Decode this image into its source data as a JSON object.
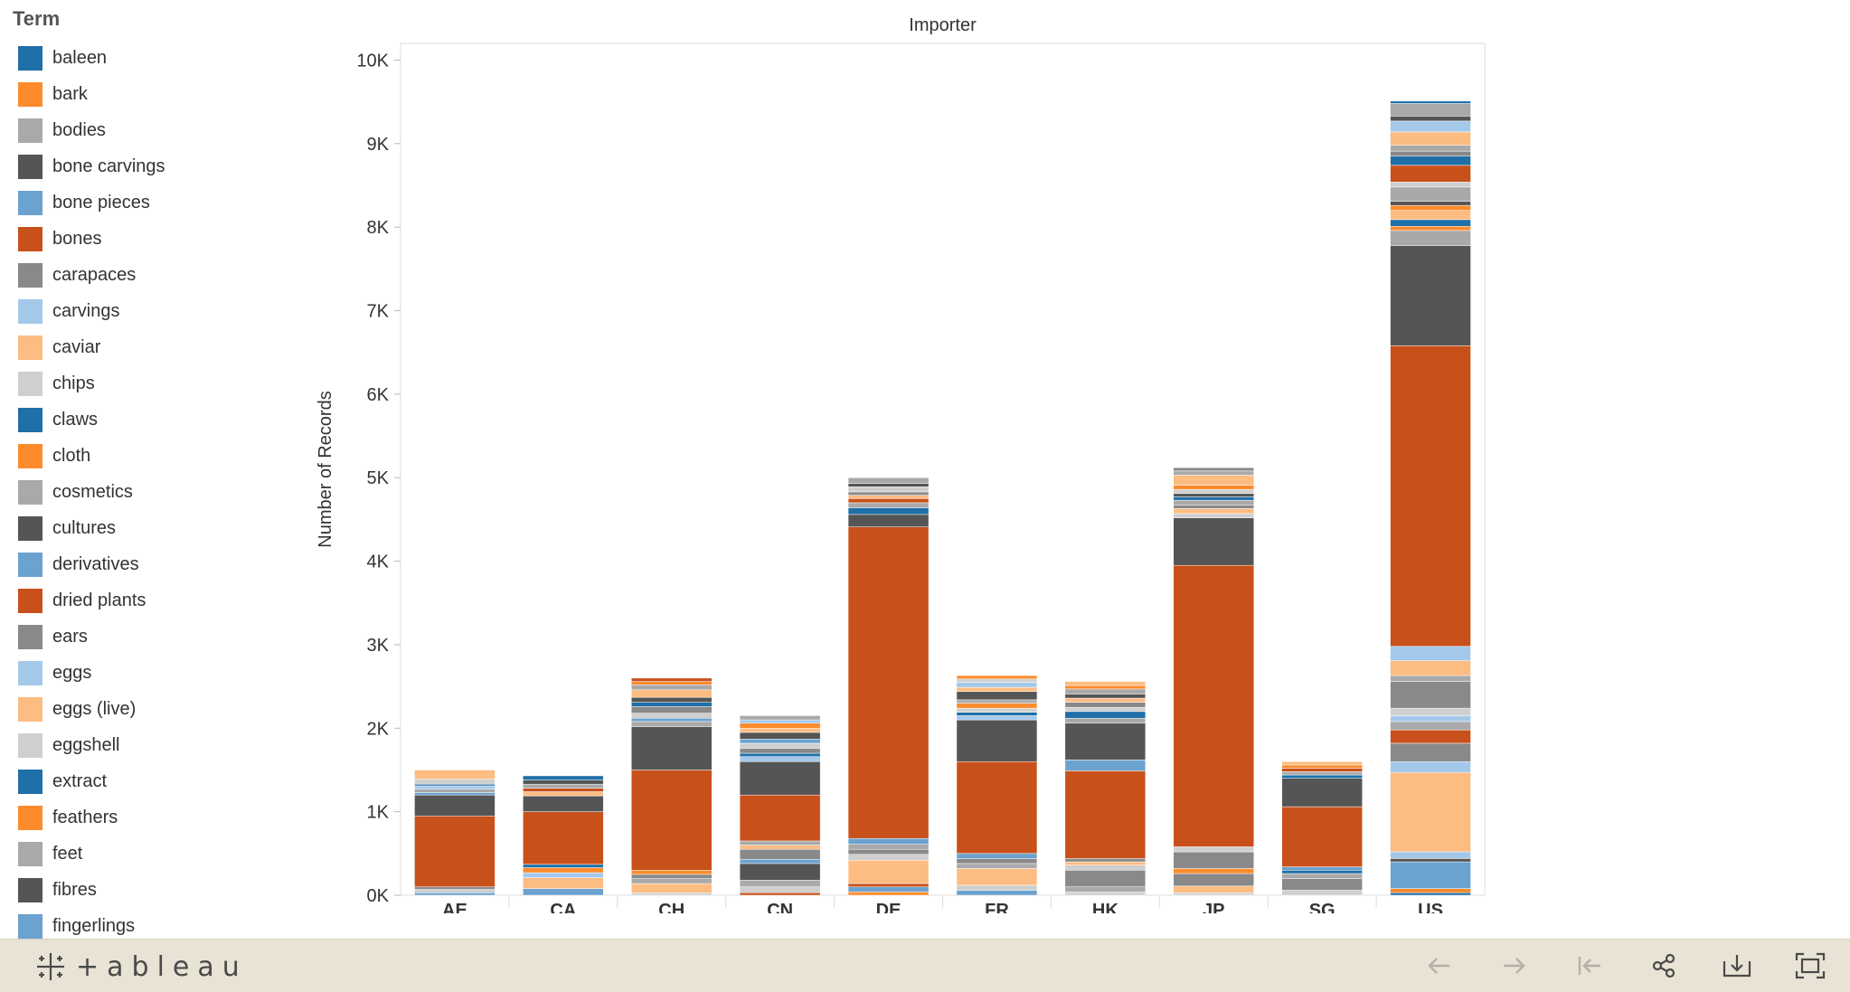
{
  "legend": {
    "title": "Term",
    "items": [
      {
        "label": "baleen",
        "color": "#1f6fa8"
      },
      {
        "label": "bark",
        "color": "#fd8b2c"
      },
      {
        "label": "bodies",
        "color": "#a9a9a9"
      },
      {
        "label": "bone carvings",
        "color": "#555555"
      },
      {
        "label": "bone pieces",
        "color": "#6ba2cf"
      },
      {
        "label": "bones",
        "color": "#c8501a"
      },
      {
        "label": "carapaces",
        "color": "#898989"
      },
      {
        "label": "carvings",
        "color": "#a4c8ea"
      },
      {
        "label": "caviar",
        "color": "#fcbc82"
      },
      {
        "label": "chips",
        "color": "#cfcfcf"
      },
      {
        "label": "claws",
        "color": "#1f6fa8"
      },
      {
        "label": "cloth",
        "color": "#fd8b2c"
      },
      {
        "label": "cosmetics",
        "color": "#a9a9a9"
      },
      {
        "label": "cultures",
        "color": "#555555"
      },
      {
        "label": "derivatives",
        "color": "#6ba2cf"
      },
      {
        "label": "dried plants",
        "color": "#c8501a"
      },
      {
        "label": "ears",
        "color": "#898989"
      },
      {
        "label": "eggs",
        "color": "#a4c8ea"
      },
      {
        "label": "eggs (live)",
        "color": "#fcbc82"
      },
      {
        "label": "eggshell",
        "color": "#cfcfcf"
      },
      {
        "label": "extract",
        "color": "#1f6fa8"
      },
      {
        "label": "feathers",
        "color": "#fd8b2c"
      },
      {
        "label": "feet",
        "color": "#a9a9a9"
      },
      {
        "label": "fibres",
        "color": "#555555"
      },
      {
        "label": "fingerlings",
        "color": "#6ba2cf"
      }
    ]
  },
  "footer": {
    "logo_text": "+ableau"
  },
  "chart_data": {
    "type": "bar",
    "stacked": true,
    "title": "Importer",
    "xlabel": "",
    "ylabel": "Number of Records",
    "ylim": [
      0,
      10200
    ],
    "yticks": [
      0,
      1000,
      2000,
      3000,
      4000,
      5000,
      6000,
      7000,
      8000,
      9000,
      10000
    ],
    "ytick_labels": [
      "0K",
      "1K",
      "2K",
      "3K",
      "4K",
      "5K",
      "6K",
      "7K",
      "8K",
      "9K",
      "10K"
    ],
    "grid": false,
    "legend_position": "left",
    "categories": [
      "AE",
      "CA",
      "CH",
      "CN",
      "DE",
      "FR",
      "HK",
      "JP",
      "SG",
      "US"
    ],
    "bars": [
      {
        "category": "AE",
        "segments": [
          {
            "value": 30,
            "color": "#6ba2cf"
          },
          {
            "value": 40,
            "color": "#cfcfcf"
          },
          {
            "value": 30,
            "color": "#898989"
          },
          {
            "value": 850,
            "color": "#c8501a"
          },
          {
            "value": 250,
            "color": "#555555"
          },
          {
            "value": 30,
            "color": "#6ba2cf"
          },
          {
            "value": 40,
            "color": "#a9a9a9"
          },
          {
            "value": 40,
            "color": "#a4c8ea"
          },
          {
            "value": 20,
            "color": "#1f6fa8"
          },
          {
            "value": 60,
            "color": "#cfcfcf"
          },
          {
            "value": 110,
            "color": "#fcbc82"
          }
        ]
      },
      {
        "category": "CA",
        "segments": [
          {
            "value": 80,
            "color": "#6ba2cf"
          },
          {
            "value": 130,
            "color": "#fcbc82"
          },
          {
            "value": 60,
            "color": "#a4c8ea"
          },
          {
            "value": 60,
            "color": "#fd8b2c"
          },
          {
            "value": 40,
            "color": "#1f6fa8"
          },
          {
            "value": 630,
            "color": "#c8501a"
          },
          {
            "value": 190,
            "color": "#555555"
          },
          {
            "value": 50,
            "color": "#fcbc82"
          },
          {
            "value": 40,
            "color": "#c8501a"
          },
          {
            "value": 50,
            "color": "#a9a9a9"
          },
          {
            "value": 50,
            "color": "#555555"
          },
          {
            "value": 50,
            "color": "#1f6fa8"
          }
        ]
      },
      {
        "category": "CH",
        "segments": [
          {
            "value": 30,
            "color": "#cfcfcf"
          },
          {
            "value": 110,
            "color": "#fcbc82"
          },
          {
            "value": 60,
            "color": "#a9a9a9"
          },
          {
            "value": 50,
            "color": "#898989"
          },
          {
            "value": 50,
            "color": "#fd8b2c"
          },
          {
            "value": 1200,
            "color": "#c8501a"
          },
          {
            "value": 520,
            "color": "#555555"
          },
          {
            "value": 60,
            "color": "#a9a9a9"
          },
          {
            "value": 40,
            "color": "#6ba2cf"
          },
          {
            "value": 60,
            "color": "#cfcfcf"
          },
          {
            "value": 80,
            "color": "#898989"
          },
          {
            "value": 50,
            "color": "#1f6fa8"
          },
          {
            "value": 60,
            "color": "#555555"
          },
          {
            "value": 90,
            "color": "#fcbc82"
          },
          {
            "value": 60,
            "color": "#a9a9a9"
          },
          {
            "value": 40,
            "color": "#fd8b2c"
          },
          {
            "value": 40,
            "color": "#c8501a"
          }
        ]
      },
      {
        "category": "CN",
        "segments": [
          {
            "value": 30,
            "color": "#c8501a"
          },
          {
            "value": 70,
            "color": "#cfcfcf"
          },
          {
            "value": 80,
            "color": "#a9a9a9"
          },
          {
            "value": 200,
            "color": "#555555"
          },
          {
            "value": 50,
            "color": "#6ba2cf"
          },
          {
            "value": 120,
            "color": "#898989"
          },
          {
            "value": 50,
            "color": "#fcbc82"
          },
          {
            "value": 50,
            "color": "#a9a9a9"
          },
          {
            "value": 550,
            "color": "#c8501a"
          },
          {
            "value": 400,
            "color": "#555555"
          },
          {
            "value": 60,
            "color": "#a4c8ea"
          },
          {
            "value": 40,
            "color": "#1f6fa8"
          },
          {
            "value": 60,
            "color": "#898989"
          },
          {
            "value": 60,
            "color": "#cfcfcf"
          },
          {
            "value": 50,
            "color": "#6ba2cf"
          },
          {
            "value": 80,
            "color": "#555555"
          },
          {
            "value": 50,
            "color": "#fcbc82"
          },
          {
            "value": 60,
            "color": "#fd8b2c"
          },
          {
            "value": 40,
            "color": "#a4c8ea"
          },
          {
            "value": 50,
            "color": "#a9a9a9"
          }
        ]
      },
      {
        "category": "DE",
        "segments": [
          {
            "value": 40,
            "color": "#fd8b2c"
          },
          {
            "value": 60,
            "color": "#6ba2cf"
          },
          {
            "value": 40,
            "color": "#c8501a"
          },
          {
            "value": 280,
            "color": "#fcbc82"
          },
          {
            "value": 70,
            "color": "#cfcfcf"
          },
          {
            "value": 60,
            "color": "#898989"
          },
          {
            "value": 60,
            "color": "#a9a9a9"
          },
          {
            "value": 70,
            "color": "#6ba2cf"
          },
          {
            "value": 3730,
            "color": "#c8501a"
          },
          {
            "value": 150,
            "color": "#555555"
          },
          {
            "value": 80,
            "color": "#1f6fa8"
          },
          {
            "value": 60,
            "color": "#a9a9a9"
          },
          {
            "value": 50,
            "color": "#c8501a"
          },
          {
            "value": 40,
            "color": "#fcbc82"
          },
          {
            "value": 40,
            "color": "#898989"
          },
          {
            "value": 60,
            "color": "#cfcfcf"
          },
          {
            "value": 40,
            "color": "#555555"
          },
          {
            "value": 70,
            "color": "#a9a9a9"
          }
        ]
      },
      {
        "category": "FR",
        "segments": [
          {
            "value": 60,
            "color": "#6ba2cf"
          },
          {
            "value": 60,
            "color": "#cfcfcf"
          },
          {
            "value": 200,
            "color": "#fcbc82"
          },
          {
            "value": 60,
            "color": "#a9a9a9"
          },
          {
            "value": 60,
            "color": "#898989"
          },
          {
            "value": 60,
            "color": "#6ba2cf"
          },
          {
            "value": 1100,
            "color": "#c8501a"
          },
          {
            "value": 500,
            "color": "#555555"
          },
          {
            "value": 50,
            "color": "#a4c8ea"
          },
          {
            "value": 40,
            "color": "#1f6fa8"
          },
          {
            "value": 50,
            "color": "#cfcfcf"
          },
          {
            "value": 60,
            "color": "#fd8b2c"
          },
          {
            "value": 40,
            "color": "#a9a9a9"
          },
          {
            "value": 100,
            "color": "#555555"
          },
          {
            "value": 50,
            "color": "#fcbc82"
          },
          {
            "value": 60,
            "color": "#a4c8ea"
          },
          {
            "value": 40,
            "color": "#cfcfcf"
          },
          {
            "value": 40,
            "color": "#fd8b2c"
          }
        ]
      },
      {
        "category": "HK",
        "segments": [
          {
            "value": 40,
            "color": "#cfcfcf"
          },
          {
            "value": 60,
            "color": "#a9a9a9"
          },
          {
            "value": 200,
            "color": "#898989"
          },
          {
            "value": 60,
            "color": "#cfcfcf"
          },
          {
            "value": 40,
            "color": "#fcbc82"
          },
          {
            "value": 40,
            "color": "#898989"
          },
          {
            "value": 1050,
            "color": "#c8501a"
          },
          {
            "value": 130,
            "color": "#6ba2cf"
          },
          {
            "value": 440,
            "color": "#555555"
          },
          {
            "value": 60,
            "color": "#a9a9a9"
          },
          {
            "value": 80,
            "color": "#1f6fa8"
          },
          {
            "value": 50,
            "color": "#cfcfcf"
          },
          {
            "value": 60,
            "color": "#898989"
          },
          {
            "value": 50,
            "color": "#fcbc82"
          },
          {
            "value": 50,
            "color": "#555555"
          },
          {
            "value": 60,
            "color": "#a9a9a9"
          },
          {
            "value": 40,
            "color": "#fd8b2c"
          },
          {
            "value": 50,
            "color": "#fcbc82"
          }
        ]
      },
      {
        "category": "JP",
        "segments": [
          {
            "value": 30,
            "color": "#cfcfcf"
          },
          {
            "value": 80,
            "color": "#fcbc82"
          },
          {
            "value": 150,
            "color": "#898989"
          },
          {
            "value": 60,
            "color": "#fd8b2c"
          },
          {
            "value": 200,
            "color": "#898989"
          },
          {
            "value": 60,
            "color": "#cfcfcf"
          },
          {
            "value": 3370,
            "color": "#c8501a"
          },
          {
            "value": 570,
            "color": "#555555"
          },
          {
            "value": 50,
            "color": "#cfcfcf"
          },
          {
            "value": 60,
            "color": "#fcbc82"
          },
          {
            "value": 40,
            "color": "#898989"
          },
          {
            "value": 60,
            "color": "#a9a9a9"
          },
          {
            "value": 40,
            "color": "#1f6fa8"
          },
          {
            "value": 40,
            "color": "#555555"
          },
          {
            "value": 50,
            "color": "#cfcfcf"
          },
          {
            "value": 50,
            "color": "#fd8b2c"
          },
          {
            "value": 120,
            "color": "#fcbc82"
          },
          {
            "value": 50,
            "color": "#a9a9a9"
          },
          {
            "value": 40,
            "color": "#898989"
          }
        ]
      },
      {
        "category": "SG",
        "segments": [
          {
            "value": 60,
            "color": "#cfcfcf"
          },
          {
            "value": 140,
            "color": "#898989"
          },
          {
            "value": 60,
            "color": "#a9a9a9"
          },
          {
            "value": 40,
            "color": "#1f6fa8"
          },
          {
            "value": 40,
            "color": "#6ba2cf"
          },
          {
            "value": 720,
            "color": "#c8501a"
          },
          {
            "value": 340,
            "color": "#555555"
          },
          {
            "value": 40,
            "color": "#1f6fa8"
          },
          {
            "value": 40,
            "color": "#a9a9a9"
          },
          {
            "value": 40,
            "color": "#c8501a"
          },
          {
            "value": 40,
            "color": "#fd8b2c"
          },
          {
            "value": 40,
            "color": "#fcbc82"
          }
        ]
      },
      {
        "category": "US",
        "segments": [
          {
            "value": 30,
            "color": "#1f6fa8"
          },
          {
            "value": 50,
            "color": "#fd8b2c"
          },
          {
            "value": 320,
            "color": "#6ba2cf"
          },
          {
            "value": 40,
            "color": "#555555"
          },
          {
            "value": 80,
            "color": "#a4c8ea"
          },
          {
            "value": 950,
            "color": "#fcbc82"
          },
          {
            "value": 130,
            "color": "#a4c8ea"
          },
          {
            "value": 220,
            "color": "#898989"
          },
          {
            "value": 160,
            "color": "#c8501a"
          },
          {
            "value": 100,
            "color": "#a9a9a9"
          },
          {
            "value": 70,
            "color": "#a4c8ea"
          },
          {
            "value": 90,
            "color": "#cfcfcf"
          },
          {
            "value": 320,
            "color": "#898989"
          },
          {
            "value": 70,
            "color": "#a9a9a9"
          },
          {
            "value": 180,
            "color": "#fcbc82"
          },
          {
            "value": 170,
            "color": "#a4c8ea"
          },
          {
            "value": 3600,
            "color": "#c8501a"
          },
          {
            "value": 1200,
            "color": "#555555"
          },
          {
            "value": 180,
            "color": "#a9a9a9"
          },
          {
            "value": 50,
            "color": "#fd8b2c"
          },
          {
            "value": 80,
            "color": "#1f6fa8"
          },
          {
            "value": 110,
            "color": "#fcbc82"
          },
          {
            "value": 60,
            "color": "#fd8b2c"
          },
          {
            "value": 50,
            "color": "#555555"
          },
          {
            "value": 170,
            "color": "#a9a9a9"
          },
          {
            "value": 60,
            "color": "#cfcfcf"
          },
          {
            "value": 200,
            "color": "#c8501a"
          },
          {
            "value": 110,
            "color": "#1f6fa8"
          },
          {
            "value": 60,
            "color": "#898989"
          },
          {
            "value": 70,
            "color": "#a9a9a9"
          },
          {
            "value": 160,
            "color": "#fcbc82"
          },
          {
            "value": 130,
            "color": "#a4c8ea"
          },
          {
            "value": 60,
            "color": "#555555"
          },
          {
            "value": 150,
            "color": "#a9a9a9"
          },
          {
            "value": 30,
            "color": "#1f6fa8"
          }
        ]
      }
    ]
  }
}
